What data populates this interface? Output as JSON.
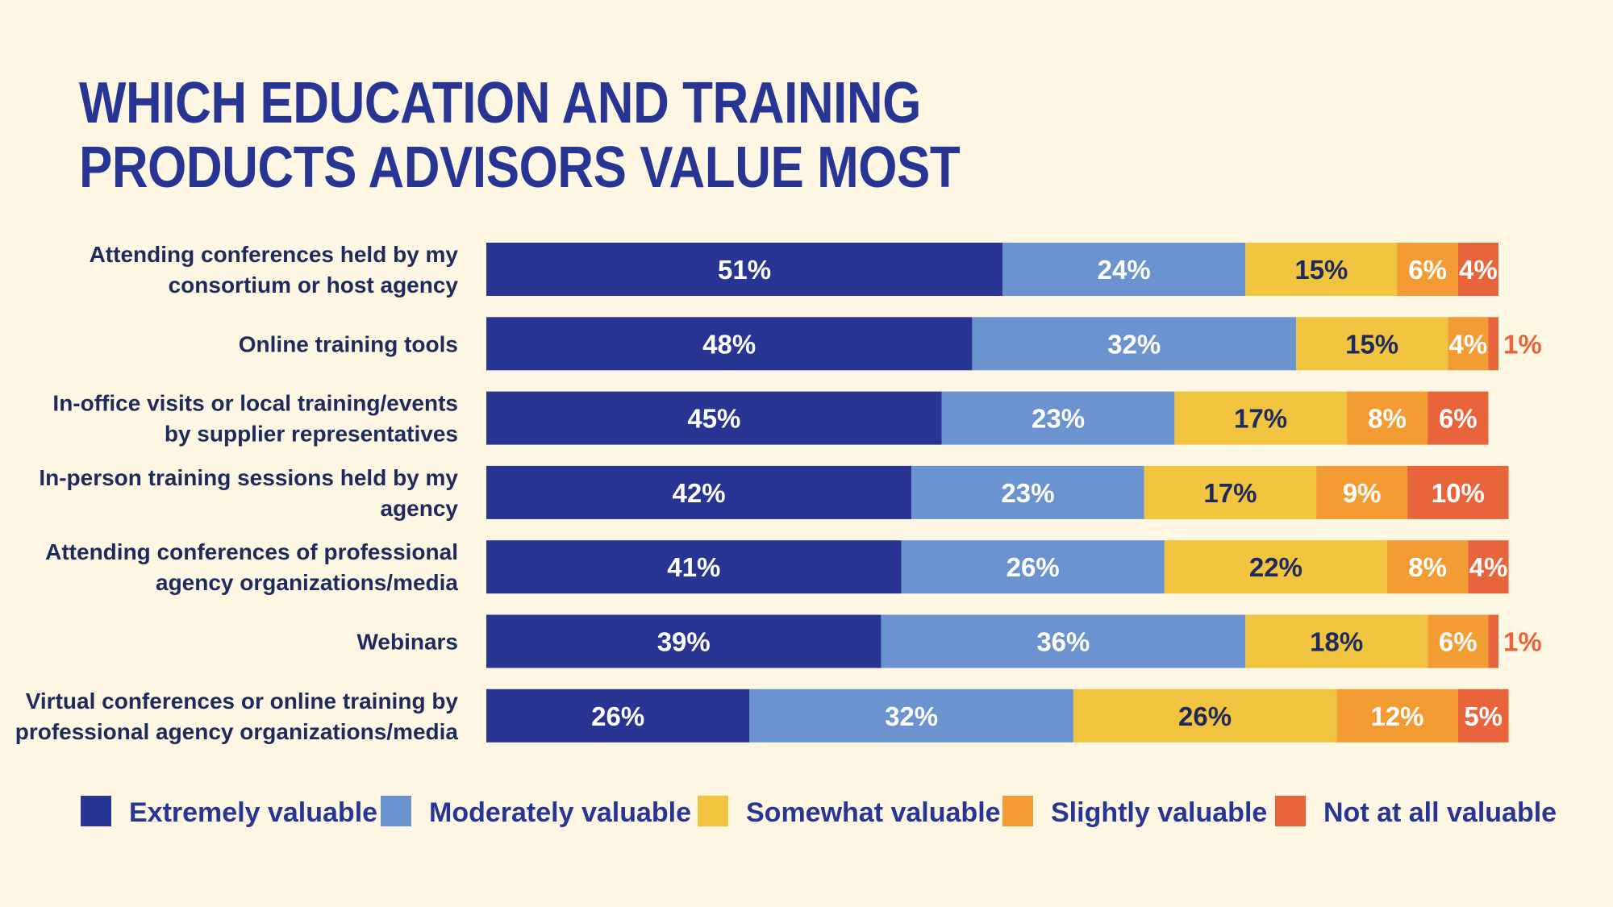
{
  "chart_data": {
    "type": "bar",
    "orientation": "horizontal",
    "stacked": true,
    "title": "WHICH EDUCATION AND TRAINING PRODUCTS ADVISORS VALUE MOST",
    "xlabel": "",
    "ylabel": "",
    "xlim": [
      0,
      100
    ],
    "grid": false,
    "legend_position": "bottom",
    "categories": [
      [
        "Attending conferences held by my",
        "consortium or host agency"
      ],
      [
        "Online training tools"
      ],
      [
        "In-office visits or local training/events",
        "by supplier representatives"
      ],
      [
        "In-person training sessions held by my",
        "agency"
      ],
      [
        "Attending conferences of professional",
        "agency organizations/media"
      ],
      [
        "Webinars"
      ],
      [
        "Virtual conferences or online training by",
        "professional agency organizations/media"
      ]
    ],
    "series": [
      {
        "name": "Extremely valuable",
        "color": "#283593",
        "label_color": "#ffffff",
        "values": [
          51,
          48,
          45,
          42,
          41,
          39,
          26
        ]
      },
      {
        "name": "Moderately valuable",
        "color": "#6a93cf",
        "label_color": "#ffffff",
        "values": [
          24,
          32,
          23,
          23,
          26,
          36,
          32
        ]
      },
      {
        "name": "Somewhat valuable",
        "color": "#f0c43f",
        "label_color": "#1f2a5c",
        "values": [
          15,
          15,
          17,
          17,
          22,
          18,
          26
        ]
      },
      {
        "name": "Slightly valuable",
        "color": "#f29c33",
        "label_color": "#ffffff",
        "values": [
          6,
          4,
          8,
          9,
          8,
          6,
          12
        ]
      },
      {
        "name": "Not at all valuable",
        "color": "#e8643a",
        "label_color": "#ffffff",
        "values": [
          4,
          1,
          6,
          10,
          4,
          1,
          5
        ]
      }
    ],
    "value_suffix": "%"
  }
}
